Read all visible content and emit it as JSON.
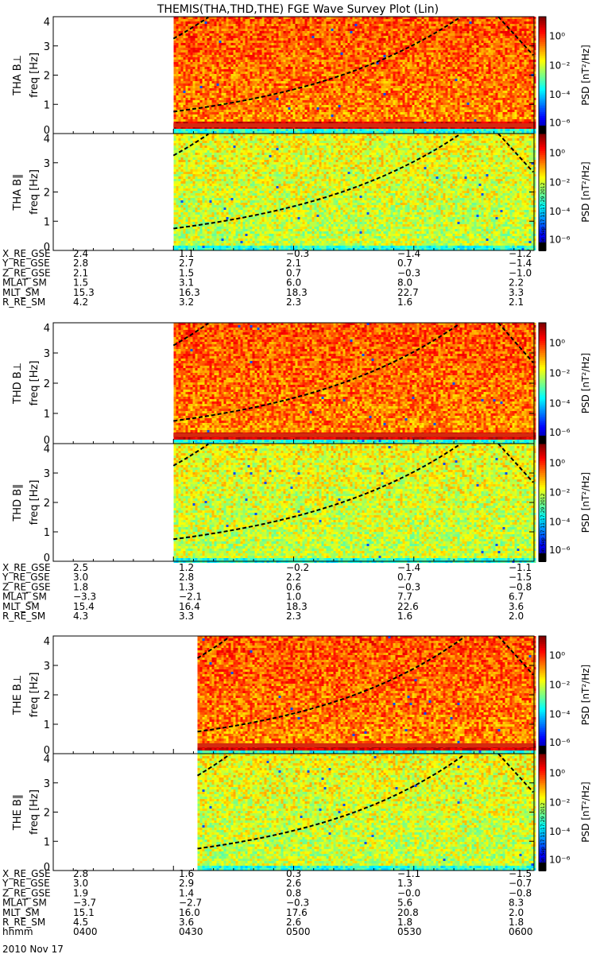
{
  "title": "THEMIS(THA,THD,THE) FGE Wave Survey Plot (Lin)",
  "ylabel": "freq [Hz]",
  "yticks": [
    "0",
    "1",
    "2",
    "3",
    "4"
  ],
  "colorbar": {
    "label": "PSD [nT²/Hz]",
    "ticks": [
      "10⁰",
      "10⁻²",
      "10⁻⁴",
      "10⁻⁶"
    ],
    "stamp": "Mon Sep 17 11:17:29 2012"
  },
  "chart_data": [
    {
      "type": "heatmap",
      "name": "THA B⊥",
      "xlabel": "hhmm",
      "ylabel": "freq [Hz]",
      "ylim": [
        0,
        4
      ],
      "z_scale": "log",
      "z_range": [
        "10⁻⁶",
        "10⁰"
      ],
      "data_start": "0430",
      "dashed_line_bottom_hz": 0.75,
      "red_band_hz": 0.3
    },
    {
      "type": "heatmap",
      "name": "THA B∥",
      "xlabel": "hhmm",
      "ylabel": "freq [Hz]",
      "ylim": [
        0,
        4
      ],
      "z_scale": "log",
      "z_range": [
        "10⁻⁶",
        "10⁰"
      ],
      "data_start": "0430",
      "dashed_line_bottom_hz": 0.75
    },
    {
      "type": "heatmap",
      "name": "THD B⊥",
      "xlabel": "hhmm",
      "ylabel": "freq [Hz]",
      "ylim": [
        0,
        4
      ],
      "z_scale": "log",
      "z_range": [
        "10⁻⁶",
        "10⁰"
      ],
      "data_start": "0430",
      "dashed_line_bottom_hz": 0.75,
      "red_band_hz": 0.3
    },
    {
      "type": "heatmap",
      "name": "THD B∥",
      "xlabel": "hhmm",
      "ylabel": "freq [Hz]",
      "ylim": [
        0,
        4
      ],
      "z_scale": "log",
      "z_range": [
        "10⁻⁶",
        "10⁰"
      ],
      "data_start": "0430",
      "dashed_line_bottom_hz": 0.75
    },
    {
      "type": "heatmap",
      "name": "THE B⊥",
      "xlabel": "hhmm",
      "ylabel": "freq [Hz]",
      "ylim": [
        0,
        4
      ],
      "z_scale": "log",
      "z_range": [
        "10⁻⁶",
        "10⁰"
      ],
      "data_start": "0436",
      "dashed_line_bottom_hz": 0.75,
      "red_band_hz": 0.3
    },
    {
      "type": "heatmap",
      "name": "THE B∥",
      "xlabel": "hhmm",
      "ylabel": "freq [Hz]",
      "ylim": [
        0,
        4
      ],
      "z_scale": "log",
      "z_range": [
        "10⁻⁶",
        "10⁰"
      ],
      "data_start": "0436",
      "dashed_line_bottom_hz": 0.75
    }
  ],
  "panel_labels": [
    "THA B⊥",
    "THA B∥",
    "THD B⊥",
    "THD B∥",
    "THE B⊥",
    "THE B∥"
  ],
  "ephemeris": [
    {
      "probe": "THA",
      "rows": [
        {
          "label": "X_RE_GSE",
          "values": [
            "2.4",
            "1.1",
            "−0.3",
            "−1.4",
            "−1.2"
          ]
        },
        {
          "label": "Y_RE_GSE",
          "values": [
            "2.8",
            "2.7",
            "2.1",
            "0.7",
            "−1.4"
          ]
        },
        {
          "label": "Z_RE_GSE",
          "values": [
            "2.1",
            "1.5",
            "0.7",
            "−0.3",
            "−1.0"
          ]
        },
        {
          "label": "MLAT_SM",
          "values": [
            "1.5",
            "3.1",
            "6.0",
            "8.0",
            "2.2"
          ]
        },
        {
          "label": "MLT_SM",
          "values": [
            "15.3",
            "16.3",
            "18.3",
            "22.7",
            "3.3"
          ]
        },
        {
          "label": "R_RE_SM",
          "values": [
            "4.2",
            "3.2",
            "2.3",
            "1.6",
            "2.1"
          ]
        }
      ]
    },
    {
      "probe": "THD",
      "rows": [
        {
          "label": "X_RE_GSE",
          "values": [
            "2.5",
            "1.2",
            "−0.2",
            "−1.4",
            "−1.1"
          ]
        },
        {
          "label": "Y_RE_GSE",
          "values": [
            "3.0",
            "2.8",
            "2.2",
            "0.7",
            "−1.5"
          ]
        },
        {
          "label": "Z_RE_GSE",
          "values": [
            "1.8",
            "1.3",
            "0.6",
            "−0.3",
            "−0.8"
          ]
        },
        {
          "label": "MLAT_SM",
          "values": [
            "−3.3",
            "−2.1",
            "1.0",
            "7.7",
            "6.7"
          ]
        },
        {
          "label": "MLT_SM",
          "values": [
            "15.4",
            "16.4",
            "18.3",
            "22.6",
            "3.6"
          ]
        },
        {
          "label": "R_RE_SM",
          "values": [
            "4.3",
            "3.3",
            "2.3",
            "1.6",
            "2.0"
          ]
        }
      ]
    },
    {
      "probe": "THE",
      "rows": [
        {
          "label": "X_RE_GSE",
          "values": [
            "2.8",
            "1.6",
            "0.3",
            "−1.1",
            "−1.5"
          ]
        },
        {
          "label": "Y_RE_GSE",
          "values": [
            "3.0",
            "2.9",
            "2.6",
            "1.3",
            "−0.7"
          ]
        },
        {
          "label": "Z_RE_GSE",
          "values": [
            "1.9",
            "1.4",
            "0.8",
            "−0.0",
            "−0.8"
          ]
        },
        {
          "label": "MLAT_SM",
          "values": [
            "−3.7",
            "−2.7",
            "−0.3",
            "5.6",
            "8.3"
          ]
        },
        {
          "label": "MLT_SM",
          "values": [
            "15.1",
            "16.0",
            "17.6",
            "20.8",
            "2.0"
          ]
        },
        {
          "label": "R_RE_SM",
          "values": [
            "4.5",
            "3.6",
            "2.6",
            "1.8",
            "1.8"
          ]
        },
        {
          "label": "hhmm",
          "values": [
            "0400",
            "0430",
            "0500",
            "0530",
            "0600"
          ]
        }
      ]
    }
  ],
  "date": "2010 Nov 17"
}
